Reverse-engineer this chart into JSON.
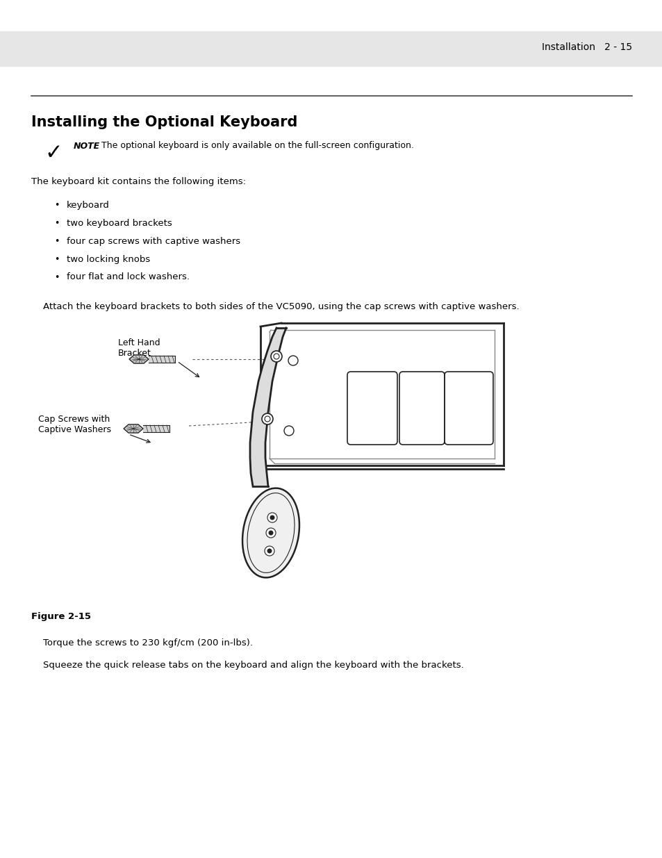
{
  "page_bg": "#ffffff",
  "header_bg": "#e6e6e6",
  "header_text": "Installation   2 - 15",
  "header_fontsize": 10,
  "title": "Installing the Optional Keyboard",
  "title_fontsize": 15,
  "note_bold": "NOTE",
  "note_text": "The optional keyboard is only available on the full-screen configuration.",
  "note_fontsize": 9,
  "body_text": "The keyboard kit contains the following items:",
  "body_fontsize": 9.5,
  "bullet_items": [
    "keyboard",
    "two keyboard brackets",
    "four cap screws with captive washers",
    "two locking knobs",
    "four flat and lock washers."
  ],
  "attach_text": "Attach the keyboard brackets to both sides of the VC5090, using the cap screws with captive washers.",
  "label_left_hand_1": "Left Hand",
  "label_left_hand_2": "Bracket",
  "label_cap_screws_1": "Cap Screws with",
  "label_cap_screws_2": "Captive Washers",
  "figure_label": "Figure 2-15",
  "torque_text": "Torque the screws to 230 kgf/cm (200 in-lbs).",
  "squeeze_text": "Squeeze the quick release tabs on the keyboard and align the keyboard with the brackets.",
  "text_color": "#000000",
  "lc": "#222222",
  "lc_light": "#888888"
}
